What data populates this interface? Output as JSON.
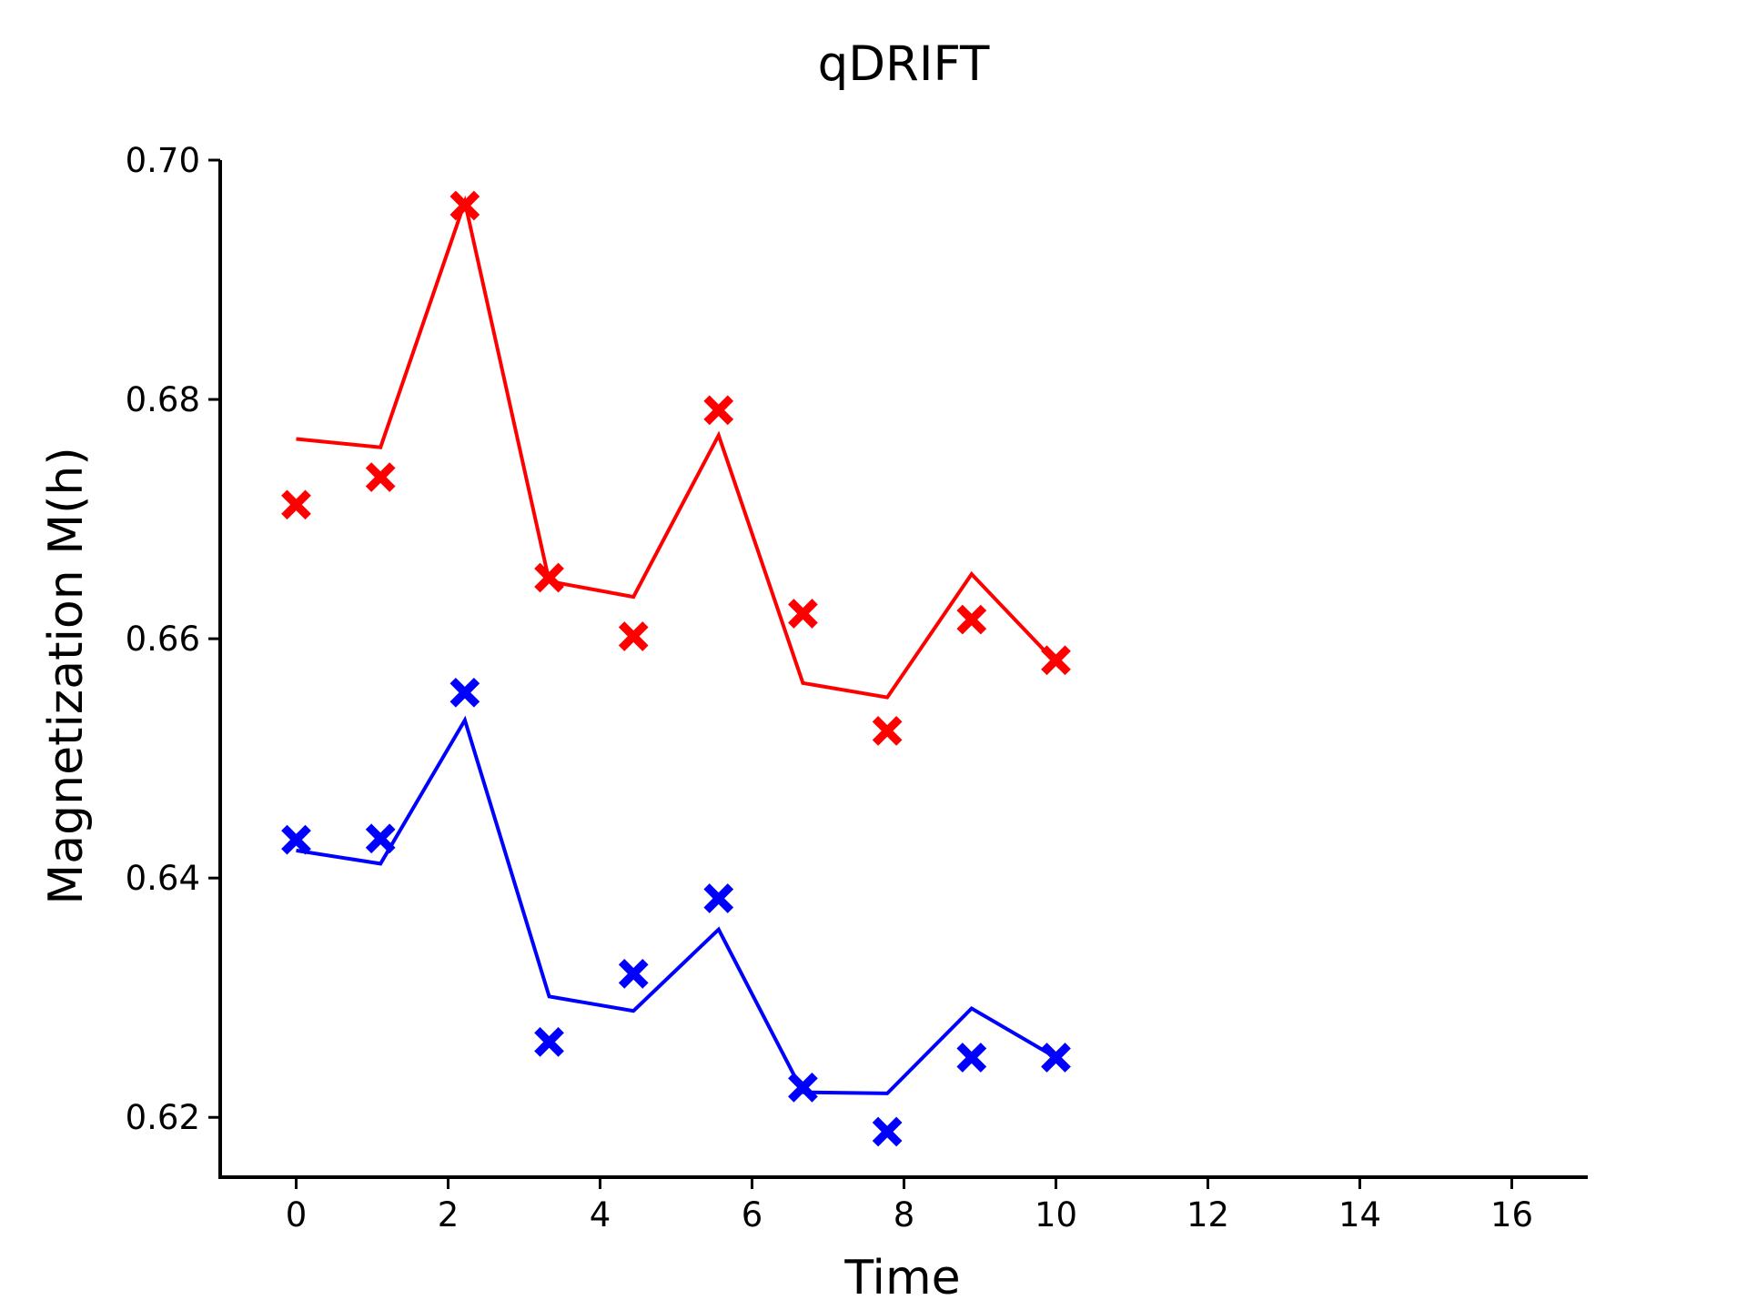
{
  "chart_data": {
    "type": "line",
    "title": "qDRIFT",
    "xlabel": "Time",
    "ylabel": "Magnetization M(h)",
    "xlim": [
      -1,
      17
    ],
    "ylim": [
      0.615,
      0.7
    ],
    "xticks": [
      0,
      2,
      4,
      6,
      8,
      10,
      12,
      14,
      16
    ],
    "xtick_labels": [
      "0",
      "2",
      "4",
      "6",
      "8",
      "10",
      "12",
      "14",
      "16"
    ],
    "yticks": [
      0.62,
      0.64,
      0.66,
      0.68,
      0.7
    ],
    "ytick_labels": [
      "0.62",
      "0.64",
      "0.66",
      "0.68",
      "0.70"
    ],
    "grid": false,
    "legend": "none",
    "x": [
      0,
      1.11,
      2.22,
      3.33,
      4.44,
      5.56,
      6.67,
      7.78,
      8.89,
      10
    ],
    "series": [
      {
        "color": "#ff0000",
        "line": [
          0.6767,
          0.676,
          0.6965,
          0.6648,
          0.6635,
          0.677,
          0.6563,
          0.6551,
          0.6654,
          0.658
        ],
        "markers": [
          0.6712,
          0.6735,
          0.6962,
          0.6651,
          0.6602,
          0.6791,
          0.6621,
          0.6523,
          0.6616,
          0.6582
        ]
      },
      {
        "color": "#0000ff",
        "line": [
          0.6423,
          0.6412,
          0.6532,
          0.6301,
          0.6289,
          0.6357,
          0.6221,
          0.622,
          0.6291,
          0.625
        ],
        "markers": [
          0.6432,
          0.6433,
          0.6555,
          0.6263,
          0.632,
          0.6383,
          0.6225,
          0.6188,
          0.625,
          0.625
        ]
      }
    ]
  }
}
